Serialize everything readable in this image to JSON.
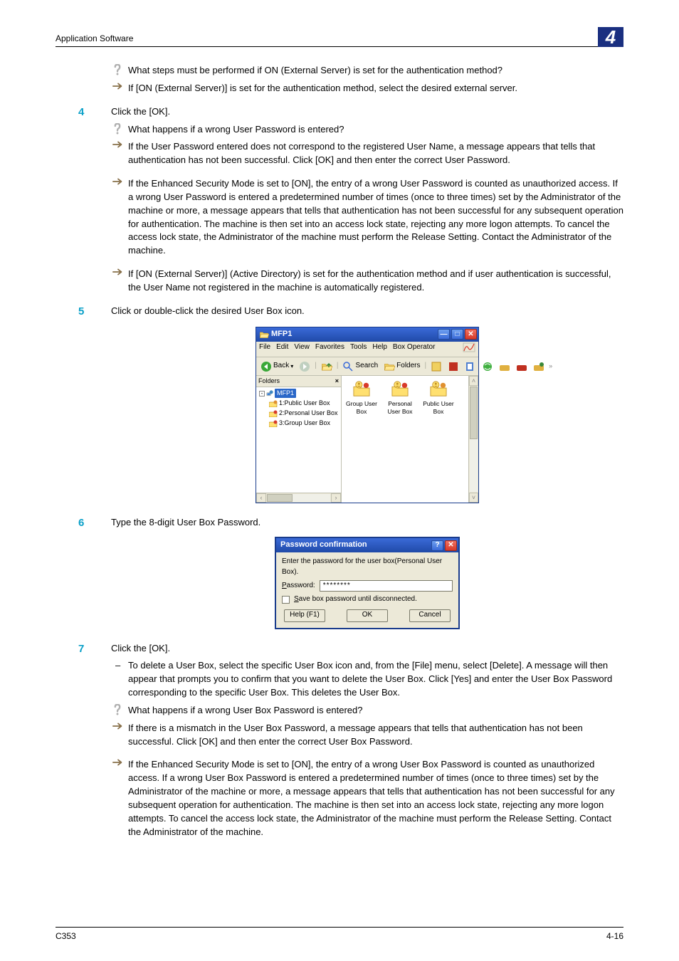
{
  "header": {
    "section": "Application Software",
    "chapter_number": "4"
  },
  "pre_step4": {
    "q": "What steps must be performed if ON (External Server) is set for the authentication method?",
    "a": "If [ON (External Server)] is set for the authentication method, select the desired external server."
  },
  "step4": {
    "num": "4",
    "text": "Click the [OK].",
    "q": "What happens if a wrong User Password is entered?",
    "b1": "If the User Password entered does not correspond to the registered User Name, a message appears that tells that authentication has not been successful. Click [OK] and then enter the correct User Password.",
    "b2": "If the Enhanced Security Mode is set to [ON], the entry of a wrong User Password is counted as unauthorized access. If a wrong User Password is entered a predetermined number of times (once to three times) set by the Administrator of the machine or more, a message appears that tells that authentication has not been successful for any subsequent operation for authentication. The machine is then set into an access lock state, rejecting any more logon attempts. To cancel the access lock state, the Administrator of the machine must perform the Release Setting. Contact the Administrator of the machine.",
    "b3": "If [ON (External Server)] (Active Directory) is set for the authentication method and if user authentication is successful, the User Name not registered in the machine is automatically registered."
  },
  "step5": {
    "num": "5",
    "text": "Click or double-click the desired User Box icon."
  },
  "explorer": {
    "title": "MFP1",
    "menu": {
      "file": "File",
      "edit": "Edit",
      "view": "View",
      "fav": "Favorites",
      "tools": "Tools",
      "help": "Help",
      "boxop": "Box Operator"
    },
    "toolbar": {
      "back": "Back",
      "search": "Search",
      "folders": "Folders"
    },
    "folders_label": "Folders",
    "tree": {
      "root": "MFP1",
      "items": [
        {
          "dot": "#e09030",
          "label": "1:Public User Box"
        },
        {
          "dot": "#d83a2a",
          "label": "2:Personal User Box"
        },
        {
          "dot": "#d83a2a",
          "label": "3:Group User Box"
        }
      ]
    },
    "icons": [
      {
        "label": "Group User Box",
        "dot": "#d83a2a"
      },
      {
        "label": "Personal User Box",
        "dot": "#d83a2a"
      },
      {
        "label": "Public User Box",
        "dot": "#e09030"
      }
    ]
  },
  "step6": {
    "num": "6",
    "text": "Type the 8-digit User Box Password."
  },
  "dialog": {
    "title": "Password confirmation",
    "prompt": "Enter the password for the user box(Personal User Box).",
    "pw_label_u": "P",
    "pw_label_rest": "assword:",
    "pw_value": "********",
    "save_u": "S",
    "save_rest": "ave box password until disconnected.",
    "help": "Help (F1)",
    "ok": "OK",
    "cancel": "Cancel"
  },
  "step7": {
    "num": "7",
    "text": "Click the [OK].",
    "dash": "To delete a User Box, select the specific User Box icon and, from the [File] menu, select [Delete]. A message will then appear that prompts you to confirm that you want to delete the User Box. Click [Yes] and enter the User Box Password corresponding to the specific User Box. This deletes the User Box.",
    "q": "What happens if a wrong User Box Password is entered?",
    "b1": "If there is a mismatch in the User Box Password, a message appears that tells that authentication has not been successful. Click [OK] and then enter the correct User Box Password.",
    "b2": "If the Enhanced Security Mode is set to [ON], the entry of a wrong User Box Password is counted as unauthorized access. If a wrong User Box Password is entered a predetermined number of times (once to three times) set by the Administrator of the machine or more, a message appears that tells that authentication has not been successful for any subsequent operation for authentication. The machine is then set into an access lock state, rejecting any more logon attempts. To cancel the access lock state, the Administrator of the machine must perform the Release Setting. Contact the Administrator of the machine."
  },
  "footer": {
    "left": "C353",
    "right": "4-16"
  },
  "colors": {
    "accent": "#0aa0c8",
    "corner": "#1a2f80",
    "win_blue_top": "#3a6ad8",
    "win_blue_bot": "#204aa8",
    "close_red": "#d83a2a",
    "chrome_bg": "#ece9d8"
  }
}
